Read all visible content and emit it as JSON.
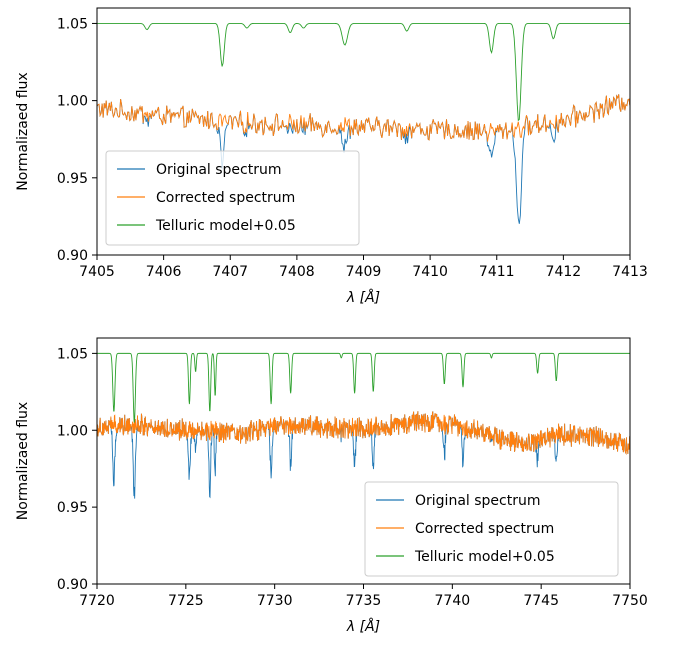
{
  "chart_data": [
    {
      "type": "line",
      "xlabel": "λ [Å]",
      "ylabel": "Normalizaed flux",
      "xlim": [
        7405,
        7413
      ],
      "ylim": [
        0.9,
        1.06
      ],
      "xticks": [
        7405,
        7406,
        7407,
        7408,
        7409,
        7410,
        7411,
        7412,
        7413
      ],
      "xtick_labels": [
        "7405",
        "7406",
        "7407",
        "7408",
        "7409",
        "7410",
        "7411",
        "7412",
        "7413"
      ],
      "yticks": [
        0.9,
        0.95,
        1.0,
        1.05
      ],
      "ytick_labels": [
        "0.90",
        "0.95",
        "1.00",
        "1.05"
      ],
      "grid": false,
      "legend_position": "lower-left",
      "continuum": [
        [
          7405,
          0.995
        ],
        [
          7406,
          0.99
        ],
        [
          7407,
          0.986
        ],
        [
          7408,
          0.984
        ],
        [
          7409,
          0.983
        ],
        [
          7410,
          0.981
        ],
        [
          7411,
          0.98
        ],
        [
          7412,
          0.987
        ],
        [
          7413,
          1.001
        ]
      ],
      "telluric_lines": [
        {
          "x": 7405.75,
          "depth": 0.004,
          "width": 0.03
        },
        {
          "x": 7406.88,
          "depth": 0.028,
          "width": 0.03
        },
        {
          "x": 7407.25,
          "depth": 0.003,
          "width": 0.03
        },
        {
          "x": 7407.9,
          "depth": 0.006,
          "width": 0.03
        },
        {
          "x": 7408.1,
          "depth": 0.003,
          "width": 0.03
        },
        {
          "x": 7408.72,
          "depth": 0.014,
          "width": 0.04
        },
        {
          "x": 7409.65,
          "depth": 0.005,
          "width": 0.03
        },
        {
          "x": 7410.92,
          "depth": 0.019,
          "width": 0.03
        },
        {
          "x": 7411.33,
          "depth": 0.064,
          "width": 0.035
        },
        {
          "x": 7411.85,
          "depth": 0.01,
          "width": 0.03
        }
      ],
      "series": [
        {
          "name": "Original spectrum",
          "color": "#1f77b4",
          "style": "observed"
        },
        {
          "name": "Corrected spectrum",
          "color": "#ff7f0e",
          "style": "corrected"
        },
        {
          "name": "Telluric model+0.05",
          "color": "#2ca02c",
          "style": "telluric",
          "offset": 0.05
        }
      ]
    },
    {
      "type": "line",
      "xlabel": "λ [Å]",
      "ylabel": "Normalizaed flux",
      "xlim": [
        7720,
        7750
      ],
      "ylim": [
        0.9,
        1.06
      ],
      "xticks": [
        7720,
        7725,
        7730,
        7735,
        7740,
        7745,
        7750
      ],
      "xtick_labels": [
        "7720",
        "7725",
        "7730",
        "7735",
        "7740",
        "7745",
        "7750"
      ],
      "yticks": [
        0.9,
        0.95,
        1.0,
        1.05
      ],
      "ytick_labels": [
        "0.90",
        "0.95",
        "1.00",
        "1.05"
      ],
      "grid": false,
      "legend_position": "lower-right",
      "continuum": [
        [
          7720,
          1.002
        ],
        [
          7722,
          1.004
        ],
        [
          7724,
          1.001
        ],
        [
          7726,
          1.0
        ],
        [
          7728,
          0.997
        ],
        [
          7730,
          1.003
        ],
        [
          7732,
          1.003
        ],
        [
          7734,
          1.001
        ],
        [
          7736,
          1.002
        ],
        [
          7738,
          1.006
        ],
        [
          7740,
          1.004
        ],
        [
          7742,
          0.998
        ],
        [
          7744,
          0.99
        ],
        [
          7746,
          0.997
        ],
        [
          7748,
          0.996
        ],
        [
          7750,
          0.991
        ]
      ],
      "telluric_lines": [
        {
          "x": 7720.95,
          "depth": 0.038,
          "width": 0.06
        },
        {
          "x": 7722.1,
          "depth": 0.045,
          "width": 0.06
        },
        {
          "x": 7725.2,
          "depth": 0.033,
          "width": 0.05
        },
        {
          "x": 7725.55,
          "depth": 0.012,
          "width": 0.04
        },
        {
          "x": 7726.35,
          "depth": 0.038,
          "width": 0.05
        },
        {
          "x": 7726.65,
          "depth": 0.028,
          "width": 0.04
        },
        {
          "x": 7729.8,
          "depth": 0.033,
          "width": 0.05
        },
        {
          "x": 7730.9,
          "depth": 0.026,
          "width": 0.05
        },
        {
          "x": 7733.75,
          "depth": 0.003,
          "width": 0.04
        },
        {
          "x": 7734.5,
          "depth": 0.026,
          "width": 0.05
        },
        {
          "x": 7735.55,
          "depth": 0.025,
          "width": 0.05
        },
        {
          "x": 7739.55,
          "depth": 0.02,
          "width": 0.05
        },
        {
          "x": 7740.6,
          "depth": 0.022,
          "width": 0.05
        },
        {
          "x": 7742.2,
          "depth": 0.003,
          "width": 0.04
        },
        {
          "x": 7744.8,
          "depth": 0.013,
          "width": 0.05
        },
        {
          "x": 7745.85,
          "depth": 0.018,
          "width": 0.05
        }
      ],
      "series": [
        {
          "name": "Original spectrum",
          "color": "#1f77b4",
          "style": "observed"
        },
        {
          "name": "Corrected spectrum",
          "color": "#ff7f0e",
          "style": "corrected"
        },
        {
          "name": "Telluric model+0.05",
          "color": "#2ca02c",
          "style": "telluric",
          "offset": 0.05
        }
      ]
    }
  ]
}
